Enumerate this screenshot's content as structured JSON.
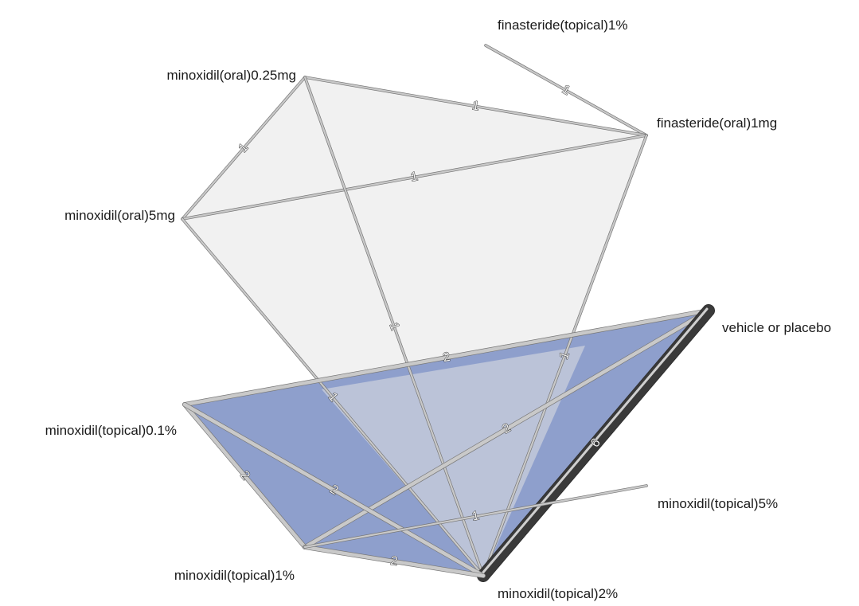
{
  "colors": {
    "background": "#ffffff",
    "light_region": "#f1f1f1",
    "blue_region": "#8e9fcc",
    "overlap_region": "#bbc3d8",
    "edge": "#c9c9c9",
    "edge_outline": "#777777"
  },
  "nodes": [
    {
      "id": "fin_top",
      "label": "finasteride(topical)1%"
    },
    {
      "id": "min_oral025",
      "label": "minoxidil(oral)0.25mg"
    },
    {
      "id": "fin_oral",
      "label": "finasteride(oral)1mg"
    },
    {
      "id": "min_oral5",
      "label": "minoxidil(oral)5mg"
    },
    {
      "id": "placebo",
      "label": "vehicle or placebo"
    },
    {
      "id": "min_top01",
      "label": "minoxidil(topical)0.1%"
    },
    {
      "id": "min_top5",
      "label": "minoxidil(topical)5%"
    },
    {
      "id": "min_top1",
      "label": "minoxidil(topical)1%"
    },
    {
      "id": "min_top2",
      "label": "minoxidil(topical)2%"
    }
  ],
  "edges": [
    {
      "from": "fin_top",
      "to": "fin_oral",
      "label": "1"
    },
    {
      "from": "min_oral025",
      "to": "fin_oral",
      "label": "1"
    },
    {
      "from": "min_oral025",
      "to": "min_oral5",
      "label": "1"
    },
    {
      "from": "min_oral5",
      "to": "fin_oral",
      "label": "1"
    },
    {
      "from": "min_oral025",
      "to": "min_top2",
      "label": "1"
    },
    {
      "from": "fin_oral",
      "to": "min_top2",
      "label": "1"
    },
    {
      "from": "min_oral5",
      "to": "min_top2",
      "label": "1"
    },
    {
      "from": "min_top01",
      "to": "placebo",
      "label": "2"
    },
    {
      "from": "min_top1",
      "to": "placebo",
      "label": "2"
    },
    {
      "from": "min_top2",
      "to": "placebo",
      "label": "6"
    },
    {
      "from": "min_top01",
      "to": "min_top1",
      "label": "2"
    },
    {
      "from": "min_top01",
      "to": "min_top2",
      "label": "2"
    },
    {
      "from": "min_top1",
      "to": "min_top2",
      "label": "2"
    },
    {
      "from": "min_top1",
      "to": "min_top5",
      "label": "1"
    }
  ]
}
